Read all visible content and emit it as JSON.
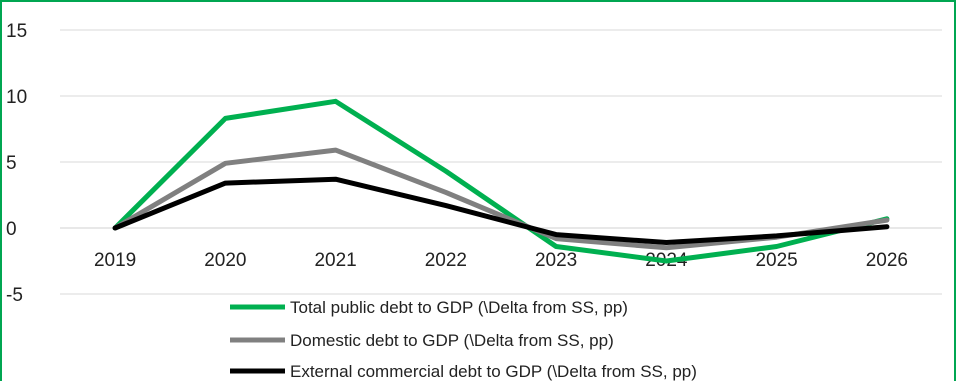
{
  "chart_data": {
    "type": "line",
    "categories": [
      "2019",
      "2020",
      "2021",
      "2022",
      "2023",
      "2024",
      "2025",
      "2026"
    ],
    "series": [
      {
        "name": "Total public debt to GDP (\\Delta from SS, pp)",
        "color": "#00B050",
        "values": [
          0,
          8.3,
          9.6,
          4.3,
          -1.4,
          -2.5,
          -1.4,
          0.7
        ]
      },
      {
        "name": "Domestic debt to GDP (\\Delta from SS, pp)",
        "color": "#808080",
        "values": [
          0,
          4.9,
          5.9,
          2.7,
          -0.8,
          -1.5,
          -0.7,
          0.6
        ]
      },
      {
        "name": "External commercial debt to GDP (\\Delta from SS, pp)",
        "color": "#000000",
        "values": [
          0,
          3.4,
          3.7,
          1.7,
          -0.5,
          -1.1,
          -0.6,
          0.1
        ]
      }
    ],
    "ylim": [
      -10,
      15
    ],
    "yticks": [
      "15",
      "10",
      "5",
      "0",
      "-5"
    ],
    "ytick_values": [
      15,
      10,
      5,
      0,
      -5
    ],
    "grid": true,
    "legend": "bottom-center",
    "frame_color": "#00A651"
  }
}
